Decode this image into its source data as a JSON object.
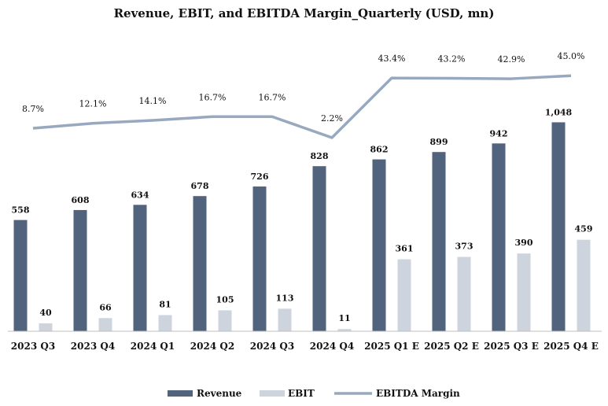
{
  "chart_data": {
    "type": "bar",
    "title": "Revenue, EBIT, and EBITDA Margin_Quarterly (USD, mn)",
    "categories": [
      "2023 Q3",
      "2023 Q4",
      "2024 Q1",
      "2024 Q2",
      "2024 Q3",
      "2024 Q4",
      "2025 Q1 E",
      "2025 Q2 E",
      "2025 Q3 E",
      "2025 Q4 E"
    ],
    "series": [
      {
        "name": "Revenue",
        "type": "bar",
        "color": "#52647d",
        "values": [
          558,
          608,
          634,
          678,
          726,
          828,
          862,
          899,
          942,
          1048
        ],
        "labels": [
          "558",
          "608",
          "634",
          "678",
          "726",
          "828",
          "862",
          "899",
          "942",
          "1,048"
        ]
      },
      {
        "name": "EBIT",
        "type": "bar",
        "color": "#cdd4dd",
        "values": [
          40,
          66,
          81,
          105,
          113,
          11,
          361,
          373,
          390,
          459
        ],
        "labels": [
          "40",
          "66",
          "81",
          "105",
          "113",
          "11",
          "361",
          "373",
          "390",
          "459"
        ]
      },
      {
        "name": "EBITDA Margin",
        "type": "line",
        "color": "#97a8bf",
        "values": [
          8.7,
          12.1,
          14.1,
          16.7,
          16.7,
          2.2,
          43.4,
          43.2,
          42.9,
          45.0
        ],
        "labels": [
          "8.7%",
          "12.1%",
          "14.1%",
          "16.7%",
          "16.7%",
          "2.2%",
          "43.4%",
          "43.2%",
          "42.9%",
          "45.0%"
        ]
      }
    ],
    "legend_position": "bottom",
    "grid": false
  }
}
